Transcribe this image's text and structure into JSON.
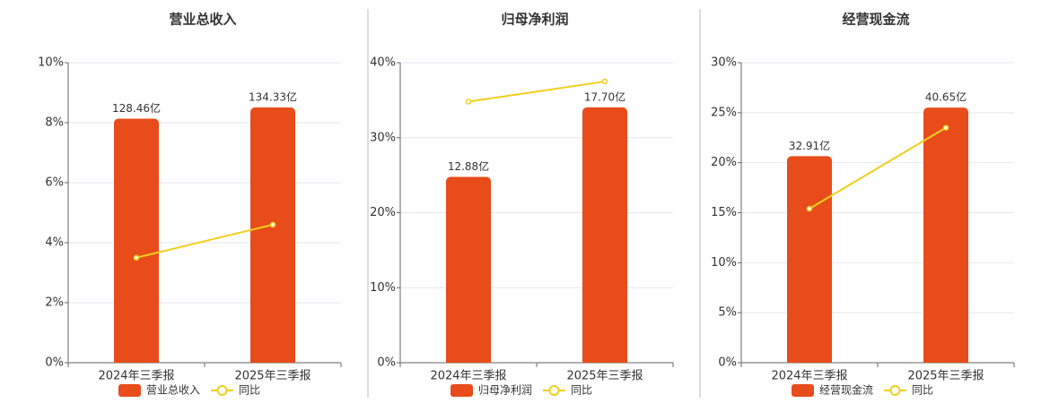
{
  "chart_data": [
    {
      "type": "bar-line",
      "title": "营业总收入",
      "categories": [
        "2024年三季报",
        "2025年三季报"
      ],
      "series": [
        {
          "name": "营业总收入",
          "color": "#e84c1a",
          "axis": "y2",
          "values": [
            128.46,
            134.33
          ],
          "value_labels": [
            "128.46亿",
            "134.33亿"
          ]
        },
        {
          "name": "同比",
          "color": "#f2cf1d",
          "values": [
            3.5,
            4.6
          ]
        }
      ],
      "ylim": [
        0,
        10
      ],
      "yticks": [
        {
          "value": 0,
          "label": "0%"
        },
        {
          "value": 2,
          "label": "2%"
        },
        {
          "value": 4,
          "label": "4%"
        },
        {
          "value": 6,
          "label": "6%"
        },
        {
          "value": 8,
          "label": "8%"
        },
        {
          "value": 10,
          "label": "10%"
        }
      ],
      "y2lim": [
        0,
        157.9
      ],
      "grid": true
    },
    {
      "type": "bar-line",
      "title": "归母净利润",
      "categories": [
        "2024年三季报",
        "2025年三季报"
      ],
      "series": [
        {
          "name": "归母净利润",
          "color": "#e84c1a",
          "axis": "y2",
          "values": [
            12.88,
            17.7
          ],
          "value_labels": [
            "12.88亿",
            "17.70亿"
          ]
        },
        {
          "name": "同比",
          "color": "#f2cf1d",
          "values": [
            34.8,
            37.5
          ]
        }
      ],
      "ylim": [
        0,
        40
      ],
      "yticks": [
        {
          "value": 0,
          "label": "0%"
        },
        {
          "value": 10,
          "label": "10%"
        },
        {
          "value": 20,
          "label": "20%"
        },
        {
          "value": 30,
          "label": "30%"
        },
        {
          "value": 40,
          "label": "40%"
        }
      ],
      "y2lim": [
        0,
        20.8
      ],
      "grid": true
    },
    {
      "type": "bar-line",
      "title": "经营现金流",
      "categories": [
        "2024年三季报",
        "2025年三季报"
      ],
      "series": [
        {
          "name": "经营现金流",
          "color": "#e84c1a",
          "axis": "y2",
          "values": [
            32.91,
            40.65
          ],
          "value_labels": [
            "32.91亿",
            "40.65亿"
          ]
        },
        {
          "name": "同比",
          "color": "#f2cf1d",
          "values": [
            15.4,
            23.5
          ]
        }
      ],
      "ylim": [
        0,
        30
      ],
      "yticks": [
        {
          "value": 0,
          "label": "0%"
        },
        {
          "value": 5,
          "label": "5%"
        },
        {
          "value": 10,
          "label": "10%"
        },
        {
          "value": 15,
          "label": "15%"
        },
        {
          "value": 20,
          "label": "20%"
        },
        {
          "value": 25,
          "label": "25%"
        },
        {
          "value": 30,
          "label": "30%"
        }
      ],
      "y2lim": [
        0,
        47.8
      ],
      "grid": true
    }
  ]
}
